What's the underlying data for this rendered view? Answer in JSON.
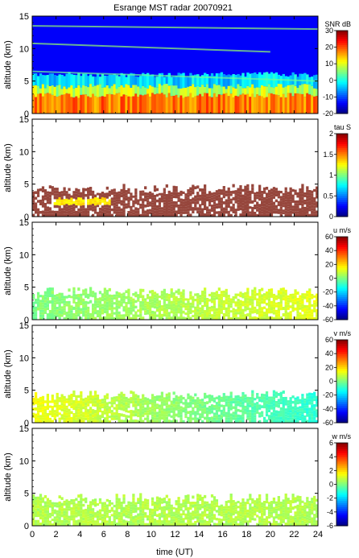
{
  "figure": {
    "title": "Esrange MST radar 20070921",
    "xlabel": "time (UT)"
  },
  "chart_data": [
    {
      "type": "heatmap",
      "name": "snr",
      "ylabel": "altitude (km)",
      "xlim": [
        0,
        24
      ],
      "ylim": [
        0,
        15
      ],
      "xticks": [
        0,
        2,
        4,
        6,
        8,
        10,
        12,
        14,
        16,
        18,
        20,
        22,
        24
      ],
      "yticks": [
        0,
        5,
        10,
        15
      ],
      "colorbar": {
        "label": "SNR dB",
        "range": [
          -20,
          30
        ],
        "ticks": [
          30,
          20,
          10,
          0,
          -10,
          -20
        ]
      },
      "fields": {
        "background": -14,
        "layers": [
          {
            "altitude_top": 2.8,
            "value": 18
          },
          {
            "altitude_top": 4.2,
            "value": 8
          },
          {
            "altitude_top": 6.0,
            "value": -3
          }
        ],
        "streaks": [
          {
            "from": [
              0,
              13.5
            ],
            "to": [
              24,
              13.0
            ],
            "value": 6
          },
          {
            "from": [
              0,
              10.8
            ],
            "to": [
              20,
              9.5
            ],
            "value": 6
          },
          {
            "from": [
              0,
              6.5
            ],
            "to": [
              24,
              5.0
            ],
            "value": 4
          }
        ]
      }
    },
    {
      "type": "heatmap",
      "name": "tau",
      "ylabel": "altitude (km)",
      "xlim": [
        0,
        24
      ],
      "ylim": [
        0,
        15
      ],
      "xticks": [
        0,
        2,
        4,
        6,
        8,
        10,
        12,
        14,
        16,
        18,
        20,
        22,
        24
      ],
      "yticks": [
        0,
        5,
        10,
        15
      ],
      "colorbar": {
        "label": "tau S",
        "range": [
          0,
          2
        ],
        "ticks": [
          2,
          1.5,
          1,
          0.5,
          0
        ]
      },
      "fields": {
        "altitude_top": 4.8,
        "value": 2,
        "highlight": {
          "x": [
            1.5,
            6.5
          ],
          "altitude": [
            1.8,
            2.8
          ],
          "value": 1.3
        }
      }
    },
    {
      "type": "heatmap",
      "name": "u",
      "ylabel": "altitude (km)",
      "xlim": [
        0,
        24
      ],
      "ylim": [
        0,
        15
      ],
      "xticks": [
        0,
        2,
        4,
        6,
        8,
        10,
        12,
        14,
        16,
        18,
        20,
        22,
        24
      ],
      "yticks": [
        0,
        5,
        10,
        15
      ],
      "colorbar": {
        "label": "u m/s",
        "range": [
          -60,
          60
        ],
        "ticks": [
          60,
          40,
          20,
          0,
          -20,
          -40,
          -60
        ]
      },
      "fields": {
        "altitude_top": 4.8,
        "value_start": 0,
        "value_end": 12
      }
    },
    {
      "type": "heatmap",
      "name": "v",
      "ylabel": "altitude (km)",
      "xlim": [
        0,
        24
      ],
      "ylim": [
        0,
        15
      ],
      "xticks": [
        0,
        2,
        4,
        6,
        8,
        10,
        12,
        14,
        16,
        18,
        20,
        22,
        24
      ],
      "yticks": [
        0,
        5,
        10,
        15
      ],
      "colorbar": {
        "label": "v m/s",
        "range": [
          -60,
          60
        ],
        "ticks": [
          60,
          40,
          20,
          0,
          -20,
          -40,
          -60
        ]
      },
      "fields": {
        "altitude_top": 4.8,
        "value_start": 14,
        "value_end": -10
      }
    },
    {
      "type": "heatmap",
      "name": "w",
      "ylabel": "altitude (km)",
      "xlim": [
        0,
        24
      ],
      "ylim": [
        0,
        15
      ],
      "xticks": [
        0,
        2,
        4,
        6,
        8,
        10,
        12,
        14,
        16,
        18,
        20,
        22,
        24
      ],
      "yticks": [
        0,
        5,
        10,
        15
      ],
      "colorbar": {
        "label": "w m/s",
        "range": [
          -6,
          6
        ],
        "ticks": [
          6,
          4,
          2,
          0,
          -2,
          -4,
          -6
        ]
      },
      "fields": {
        "altitude_top": 4.8,
        "value": 0.6
      }
    }
  ],
  "xticklabels": [
    "0",
    "2",
    "4",
    "6",
    "8",
    "10",
    "12",
    "14",
    "16",
    "18",
    "20",
    "22",
    "24"
  ]
}
